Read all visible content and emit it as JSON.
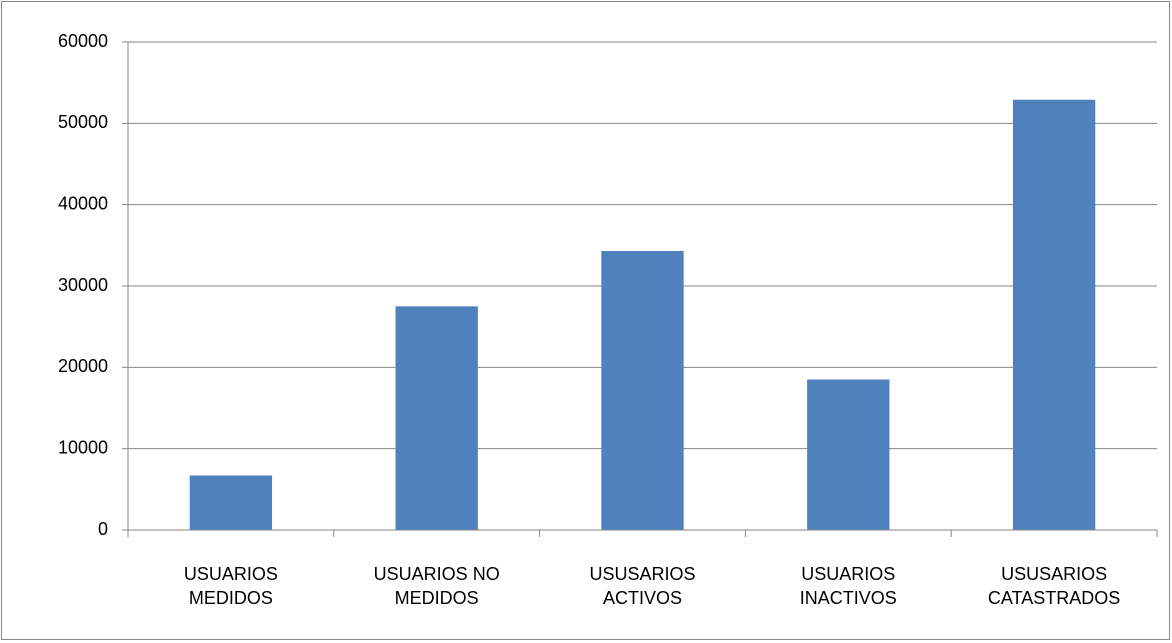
{
  "chart_data": {
    "type": "bar",
    "categories": [
      "USUARIOS MEDIDOS",
      "USUARIOS NO MEDIDOS",
      "USUSARIOS ACTIVOS",
      "USUARIOS INACTIVOS",
      "USUSARIOS CATASTRADOS"
    ],
    "values": [
      6700,
      27500,
      34300,
      18500,
      52900
    ],
    "color": "#4f81bd",
    "ylim": [
      0,
      60000
    ],
    "yticks": [
      0,
      10000,
      20000,
      30000,
      40000,
      50000,
      60000
    ],
    "grid": true
  }
}
